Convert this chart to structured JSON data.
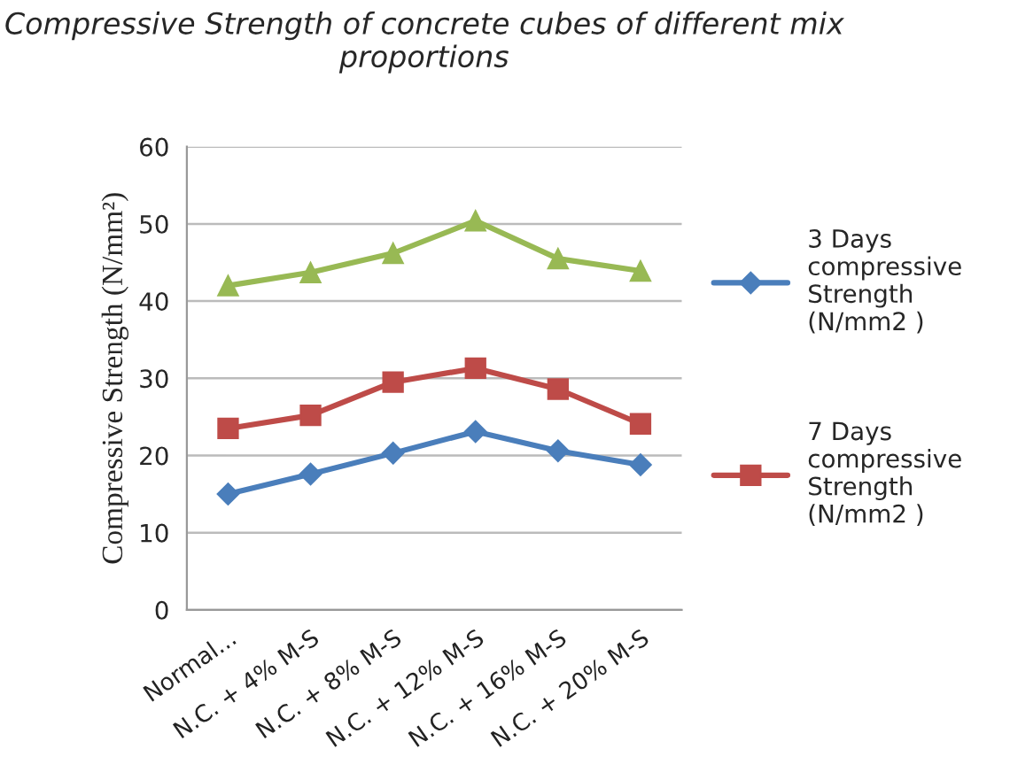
{
  "chart_data": {
    "type": "line",
    "title": "Compressive Strength of concrete cubes of different mix proportions",
    "ylabel": "Compressive Strength (N/mm²)",
    "categories": [
      "Normal...",
      "N.C. + 4% M-S",
      "N.C. + 8% M-S",
      "N.C. + 12% M-S",
      "N.C. + 16% M-S",
      "N.C. + 20% M-S"
    ],
    "series": [
      {
        "name": "3 Days compressive Strength (N/mm2 )",
        "color": "#4a7ebb",
        "marker": "diamond",
        "values": [
          15.0,
          17.6,
          20.3,
          23.1,
          20.6,
          18.8
        ]
      },
      {
        "name": "7 Days compressive Strength (N/mm2 )",
        "color": "#be4b48",
        "marker": "square",
        "values": [
          23.5,
          25.2,
          29.5,
          31.3,
          28.6,
          24.1
        ]
      },
      {
        "color": "#98b954",
        "marker": "triangle",
        "values": [
          42.0,
          43.7,
          46.2,
          50.4,
          45.5,
          43.9
        ]
      }
    ],
    "ylim": [
      0,
      60
    ],
    "yticks": [
      0,
      10,
      20,
      30,
      40,
      50,
      60
    ],
    "grid": "y",
    "legend": "right",
    "line_style": "solid"
  }
}
